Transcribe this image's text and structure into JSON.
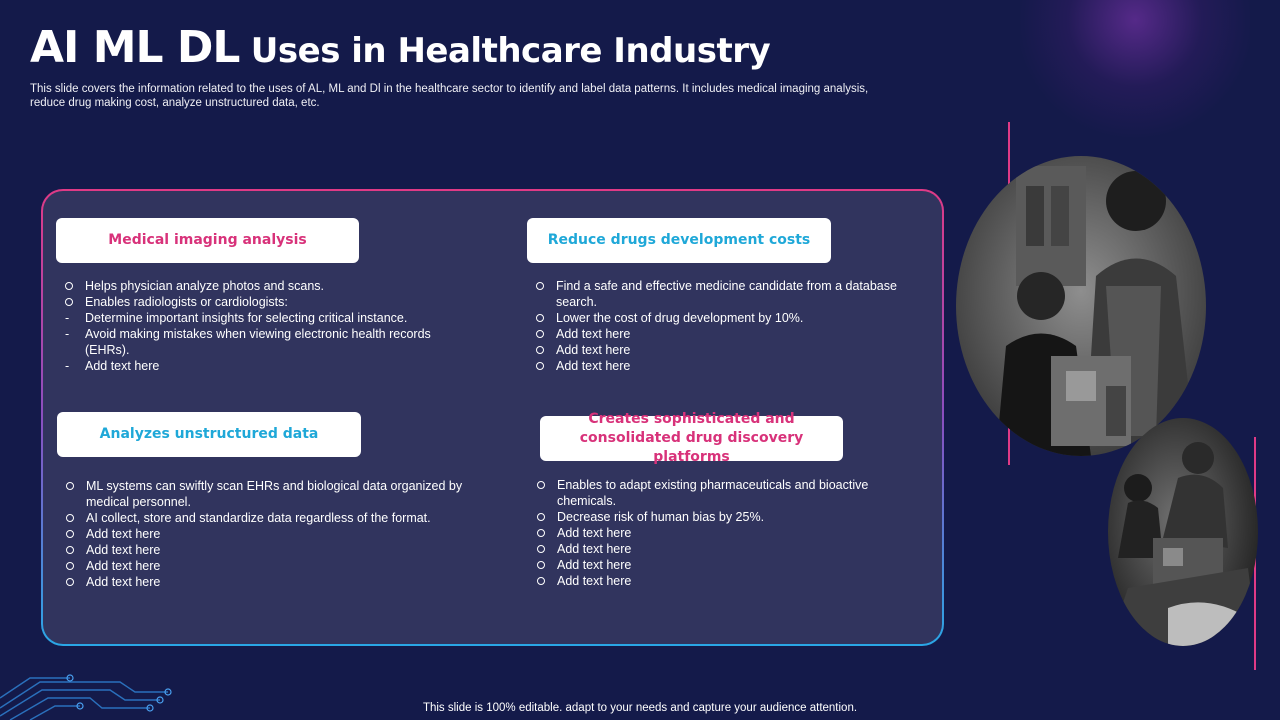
{
  "header": {
    "title_prefix": "AI ML DL",
    "title_rest": "Uses in Healthcare Industry",
    "subtitle": "This slide covers the information related to the uses of AL, ML and Dl in the healthcare sector to  identify and label data patterns. It includes medical imaging analysis, reduce drug making cost, analyze unstructured data, etc."
  },
  "sections": [
    {
      "title": "Medical imaging analysis",
      "items": [
        {
          "marker": "circle",
          "text": "Helps physician analyze photos and scans."
        },
        {
          "marker": "circle",
          "text": "Enables radiologists or cardiologists:"
        },
        {
          "marker": "dash",
          "text": "Determine important insights for selecting critical instance."
        },
        {
          "marker": "dash",
          "text": "Avoid making mistakes when viewing electronic health records (EHRs)."
        },
        {
          "marker": "dash",
          "text": "Add text here"
        }
      ]
    },
    {
      "title": "Reduce drugs development costs",
      "items": [
        {
          "marker": "circle",
          "text": "Find a safe and effective medicine candidate from a database search."
        },
        {
          "marker": "circle",
          "text": "Lower the cost of drug development  by 10%."
        },
        {
          "marker": "circle",
          "text": "Add text here"
        },
        {
          "marker": "circle",
          "text": "Add text here"
        },
        {
          "marker": "circle",
          "text": "Add text here"
        }
      ]
    },
    {
      "title": "Analyzes unstructured data",
      "items": [
        {
          "marker": "circle",
          "text": "ML systems can swiftly scan EHRs and biological data organized by medical personnel."
        },
        {
          "marker": "circle",
          "text": "AI collect, store and standardize data regardless of the format."
        },
        {
          "marker": "circle",
          "text": "Add text here"
        },
        {
          "marker": "circle",
          "text": "Add text here"
        },
        {
          "marker": "circle",
          "text": "Add text here"
        },
        {
          "marker": "circle",
          "text": "Add text here"
        }
      ]
    },
    {
      "title": "Creates sophisticated and consolidated drug discovery platforms",
      "items": [
        {
          "marker": "circle",
          "text": "Enables to adapt existing pharmaceuticals and bioactive chemicals."
        },
        {
          "marker": "circle",
          "text": "Decrease risk of human bias by 25%."
        },
        {
          "marker": "circle",
          "text": "Add text here"
        },
        {
          "marker": "circle",
          "text": "Add text here"
        },
        {
          "marker": "circle",
          "text": "Add text here"
        },
        {
          "marker": "circle",
          "text": "Add text here"
        }
      ]
    }
  ],
  "footer": "This slide is 100% editable. adapt to your needs and capture your audience attention.",
  "colors": {
    "background": "#141a4a",
    "panel": "#31345e",
    "accent_pink": "#d8327a",
    "accent_cyan": "#1fa8d8"
  }
}
